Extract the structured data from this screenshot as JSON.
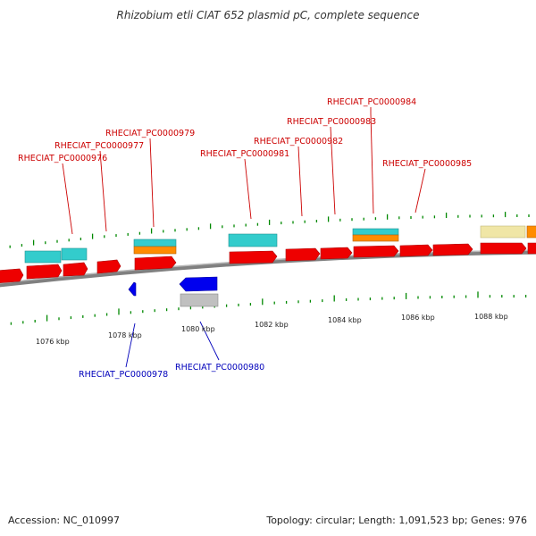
{
  "title": "Rhizobium etli CIAT 652 plasmid pC, complete sequence",
  "footer": {
    "accession": "Accession: NC_010997",
    "summary": "Topology: circular; Length: 1,091,523 bp; Genes: 976"
  },
  "colors": {
    "forward_label": "#cc0000",
    "reverse_label": "#0000bb",
    "cds": "#ff0000",
    "cds_reverse": "#0000ee",
    "rna_cyan": "#33cccc",
    "orange": "#ff8c00",
    "pale_yellow": "#f0e6a6",
    "gray": "#c0c0c0",
    "tick": "#008800"
  },
  "scale_labels": [
    "1076 kbp",
    "1078 kbp",
    "1080 kbp",
    "1082 kbp",
    "1084 kbp",
    "1086 kbp",
    "1088 kbp"
  ],
  "gene_labels": {
    "forward": [
      "RHECIAT_PC0000976",
      "RHECIAT_PC0000977",
      "RHECIAT_PC0000979",
      "RHECIAT_PC0000981",
      "RHECIAT_PC0000982",
      "RHECIAT_PC0000983",
      "RHECIAT_PC0000984",
      "RHECIAT_PC0000985"
    ],
    "reverse": [
      "RHECIAT_PC0000978",
      "RHECIAT_PC0000980"
    ]
  }
}
